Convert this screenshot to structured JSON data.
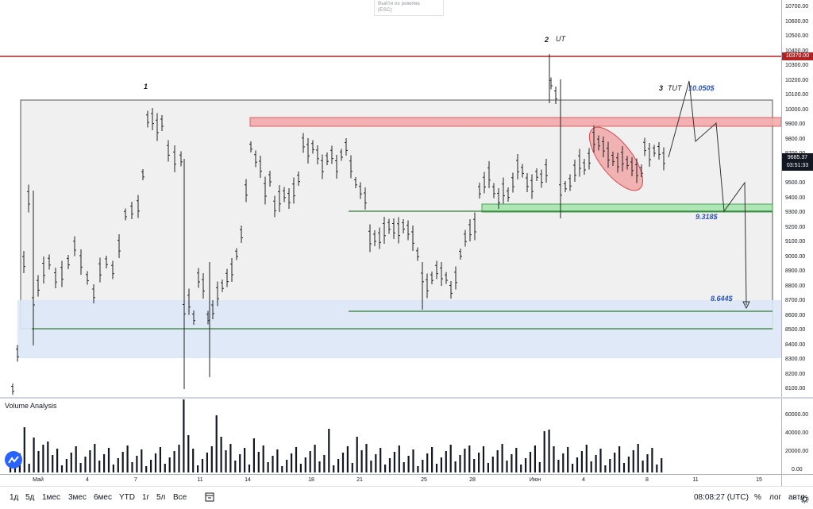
{
  "exit_fullscreen": {
    "line1": "Выйти из режима",
    "line2": "(ESC)"
  },
  "annotations": {
    "wave1": "1",
    "wave2": "2",
    "ut": "UT",
    "wave3": "3",
    "tut": "TUT",
    "target_top": "10.050$",
    "target_mid": "9.318$",
    "target_low": "8.644$"
  },
  "price_scale": {
    "ticks": [
      "10700.00",
      "10600.00",
      "10500.00",
      "10400.00",
      "10300.00",
      "10200.00",
      "10100.00",
      "10000.00",
      "9900.00",
      "9800.00",
      "9700.00",
      "9600.00",
      "9500.00",
      "9400.00",
      "9300.00",
      "9200.00",
      "9100.00",
      "9000.00",
      "8900.00",
      "8800.00",
      "8700.00",
      "8600.00",
      "8500.00",
      "8400.00",
      "8300.00",
      "8200.00",
      "8100.00"
    ],
    "red_line_label": "10370.00",
    "last_price": "9685.37",
    "countdown": "03:51:33"
  },
  "volume": {
    "title": "Volume Analysis",
    "ticks": [
      "60000.00",
      "40000.00",
      "20000.00",
      "0.00"
    ]
  },
  "time_axis": {
    "labels": [
      "Май",
      "4",
      "7",
      "11",
      "14",
      "18",
      "21",
      "25",
      "28",
      "Июн",
      "4",
      "8",
      "11",
      "15"
    ]
  },
  "range_buttons": [
    "1д",
    "5д",
    "1мес",
    "3мес",
    "6мес",
    "YTD",
    "1г",
    "5л",
    "Все"
  ],
  "bottom_bar": {
    "clock": "08:08:27 (UTC)",
    "percent": "%",
    "log": "лог",
    "auto": "авто"
  },
  "colors": {
    "red_line": "#b22222",
    "resistance_zone": "#f4a6a8",
    "support_zone": "#a8e6b0",
    "range_box": "#f0f0f0",
    "demand_zone": "#dde7f7",
    "accent": "#2962ff"
  },
  "icons": {
    "logo": "tradingview-logo-icon",
    "date_range": "calendar-range-icon",
    "settings": "gear-icon"
  }
}
